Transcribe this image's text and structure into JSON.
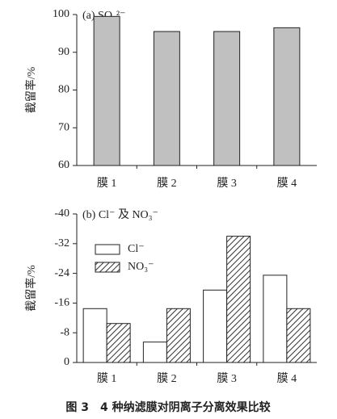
{
  "chart_data": [
    {
      "type": "bar",
      "annotation": "(a) SO₄²⁻",
      "ylabel": "截留率/%",
      "categories": [
        "膜 1",
        "膜 2",
        "膜 3",
        "膜 4"
      ],
      "values": [
        99.5,
        95.5,
        95.5,
        96.5
      ],
      "color": "#c0c0c0",
      "ylim": [
        60,
        100
      ],
      "yticks": [
        60,
        70,
        80,
        90,
        100
      ]
    },
    {
      "type": "grouped_bar",
      "annotation": "(b) Cl⁻ 及 NO₃⁻",
      "ylabel": "截留率/%",
      "categories": [
        "膜 1",
        "膜 2",
        "膜 3",
        "膜 4"
      ],
      "series": [
        {
          "name": "Cl⁻",
          "color": "#ffffff",
          "values": [
            -14.5,
            -5.5,
            -19.5,
            -23.5
          ]
        },
        {
          "name": "NO₃⁻",
          "color": "#ffffff",
          "pattern": "hatch",
          "values": [
            -10.5,
            -14.5,
            -34,
            -14.5
          ]
        }
      ],
      "ylim": [
        0,
        -40
      ],
      "yticks": [
        0,
        -8,
        -16,
        -24,
        -32,
        -40
      ]
    }
  ],
  "caption": "图 3　4 种纳滤膜对阴离子分离效果比较"
}
